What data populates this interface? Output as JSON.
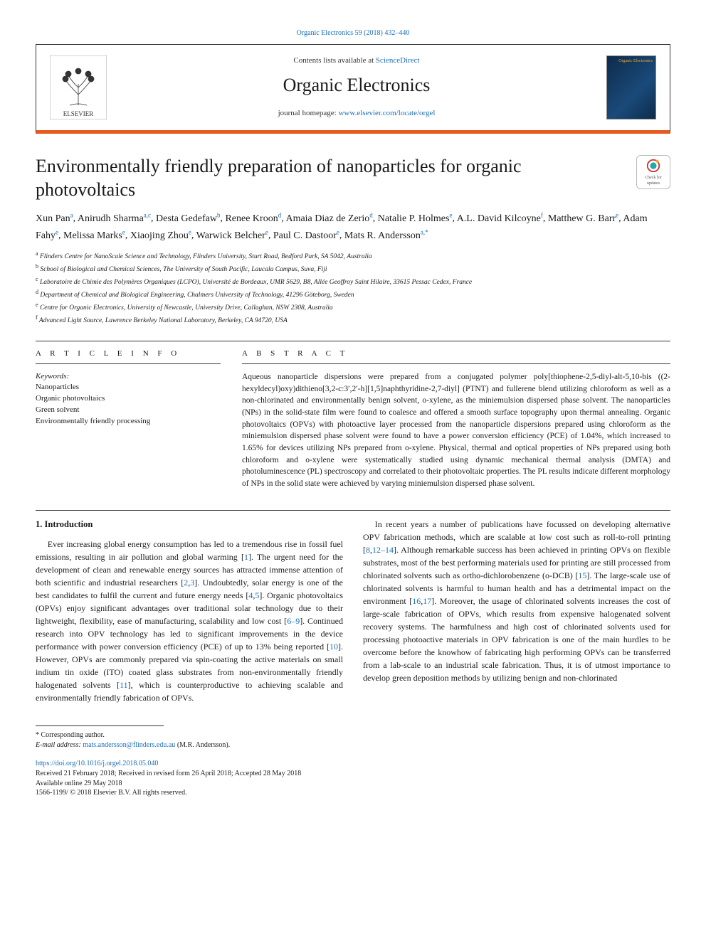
{
  "top_link": {
    "text": "Organic Electronics 59 (2018) 432–440",
    "href_color": "#1a6fb5"
  },
  "header": {
    "contents_prefix": "Contents lists available at ",
    "contents_link": "ScienceDirect",
    "journal_name": "Organic Electronics",
    "homepage_prefix": "journal homepage: ",
    "homepage_link": "www.elsevier.com/locate/orgel",
    "cover_label": "Organic\nElectronics"
  },
  "updates_badge": {
    "line1": "Check for",
    "line2": "updates"
  },
  "title": "Environmentally friendly preparation of nanoparticles for organic photovoltaics",
  "authors_html_parts": [
    {
      "name": "Xun Pan",
      "sup": "a"
    },
    {
      "name": "Anirudh Sharma",
      "sup": "a,c"
    },
    {
      "name": "Desta Gedefaw",
      "sup": "b"
    },
    {
      "name": "Renee Kroon",
      "sup": "d"
    },
    {
      "name": "Amaia Diaz de Zerio",
      "sup": "d"
    },
    {
      "name": "Natalie P. Holmes",
      "sup": "e"
    },
    {
      "name": "A.L. David Kilcoyne",
      "sup": "f"
    },
    {
      "name": "Matthew G. Barr",
      "sup": "e"
    },
    {
      "name": "Adam Fahy",
      "sup": "e"
    },
    {
      "name": "Melissa Marks",
      "sup": "e"
    },
    {
      "name": "Xiaojing Zhou",
      "sup": "e"
    },
    {
      "name": "Warwick Belcher",
      "sup": "e"
    },
    {
      "name": "Paul C. Dastoor",
      "sup": "e"
    },
    {
      "name": "Mats R. Andersson",
      "sup": "a,*"
    }
  ],
  "affiliations": [
    {
      "key": "a",
      "text": "Flinders Centre for NanoScale Science and Technology, Flinders University, Sturt Road, Bedford Park, SA 5042, Australia"
    },
    {
      "key": "b",
      "text": "School of Biological and Chemical Sciences, The University of South Pacific, Laucala Campus, Suva, Fiji"
    },
    {
      "key": "c",
      "text": "Laboratoire de Chimie des Polymères Organiques (LCPO), Université de Bordeaux, UMR 5629, B8, Allée Geoffroy Saint Hilaire, 33615 Pessac Cedex, France"
    },
    {
      "key": "d",
      "text": "Department of Chemical and Biological Engineering, Chalmers University of Technology, 41296 Göteborg, Sweden"
    },
    {
      "key": "e",
      "text": "Centre for Organic Electronics, University of Newcastle, University Drive, Callaghan, NSW 2308, Australia"
    },
    {
      "key": "f",
      "text": "Advanced Light Source, Lawrence Berkeley National Laboratory, Berkeley, CA 94720, USA"
    }
  ],
  "article_info": {
    "heading": "A R T I C L E  I N F O",
    "keywords_label": "Keywords:",
    "keywords": [
      "Nanoparticles",
      "Organic photovoltaics",
      "Green solvent",
      "Environmentally friendly processing"
    ]
  },
  "abstract": {
    "heading": "A B S T R A C T",
    "text": "Aqueous nanoparticle dispersions were prepared from a conjugated polymer poly[thiophene-2,5-diyl-alt-5,10-bis ((2-hexyldecyl)oxy)dithieno[3,2-c:3′,2′-h][1,5]naphthyridine-2,7-diyl] (PTNT) and fullerene blend utilizing chloroform as well as a non-chlorinated and environmentally benign solvent, o-xylene, as the miniemulsion dispersed phase solvent. The nanoparticles (NPs) in the solid-state film were found to coalesce and offered a smooth surface topography upon thermal annealing. Organic photovoltaics (OPVs) with photoactive layer processed from the nanoparticle dispersions prepared using chloroform as the miniemulsion dispersed phase solvent were found to have a power conversion efficiency (PCE) of 1.04%, which increased to 1.65% for devices utilizing NPs prepared from o-xylene. Physical, thermal and optical properties of NPs prepared using both chloroform and o-xylene were systematically studied using dynamic mechanical thermal analysis (DMTA) and photoluminescence (PL) spectroscopy and correlated to their photovoltaic properties. The PL results indicate different morphology of NPs in the solid state were achieved by varying miniemulsion dispersed phase solvent."
  },
  "section1": {
    "heading": "1. Introduction",
    "para1_a": "Ever increasing global energy consumption has led to a tremendous rise in fossil fuel emissions, resulting in air pollution and global warming [",
    "ref1": "1",
    "para1_b": "]. The urgent need for the development of clean and renewable energy sources has attracted immense attention of both scientific and industrial researchers [",
    "ref2": "2",
    "ref3": "3",
    "para1_c": "]. Undoubtedly, solar energy is one of the best candidates to fulfil the current and future energy needs [",
    "ref4": "4",
    "ref5": "5",
    "para1_d": "]. Organic photovoltaics (OPVs) enjoy significant advantages over traditional solar technology due to their lightweight, flexibility, ease of manufacturing, scalability and low cost [",
    "ref6_9": "6–9",
    "para1_e": "]. Continued research into OPV technology has led to significant improvements in the device performance with power conversion efficiency (PCE) of up to 13% being reported [",
    "ref10": "10",
    "para1_f": "]. However, OPVs are commonly prepared via spin-coating the active materials on small indium tin oxide (ITO) coated glass substrates from non-environmentally friendly halogenated solvents [",
    "ref11": "11",
    "para1_g": "], which is counterproductive to achieving scalable and",
    "para2_a": "environmentally friendly fabrication of OPVs.",
    "para3_a": "In recent years a number of publications have focussed on developing alternative OPV fabrication methods, which are scalable at low cost such as roll-to-roll printing [",
    "ref8": "8",
    "ref12_14": "12–14",
    "para3_b": "]. Although remarkable success has been achieved in printing OPVs on flexible substrates, most of the best performing materials used for printing are still processed from chlorinated solvents such as ortho-dichlorobenzene (o-DCB) [",
    "ref15": "15",
    "para3_c": "]. The large-scale use of chlorinated solvents is harmful to human health and has a detrimental impact on the environment [",
    "ref16": "16",
    "ref17": "17",
    "para3_d": "]. Moreover, the usage of chlorinated solvents increases the cost of large-scale fabrication of OPVs, which results from expensive halogenated solvent recovery systems. The harmfulness and high cost of chlorinated solvents used for processing photoactive materials in OPV fabrication is one of the main hurdles to be overcome before the knowhow of fabricating high performing OPVs can be transferred from a lab-scale to an industrial scale fabrication. Thus, it is of utmost importance to develop green deposition methods by utilizing benign and non-chlorinated"
  },
  "footer": {
    "corresp_label": "* Corresponding author.",
    "email_label": "E-mail address: ",
    "email": "mats.andersson@flinders.edu.au",
    "email_name": " (M.R. Andersson).",
    "doi": "https://doi.org/10.1016/j.orgel.2018.05.040",
    "history": "Received 21 February 2018; Received in revised form 26 April 2018; Accepted 28 May 2018",
    "available": "Available online 29 May 2018",
    "copyright": "1566-1199/ © 2018 Elsevier B.V. All rights reserved."
  },
  "colors": {
    "link": "#1a6fb5",
    "orange_rule": "#e65a1f",
    "text": "#1a1a1a",
    "cover_bg1": "#0d2b4a",
    "cover_bg2": "#1a4a7a",
    "cover_text": "#e6a52e"
  }
}
